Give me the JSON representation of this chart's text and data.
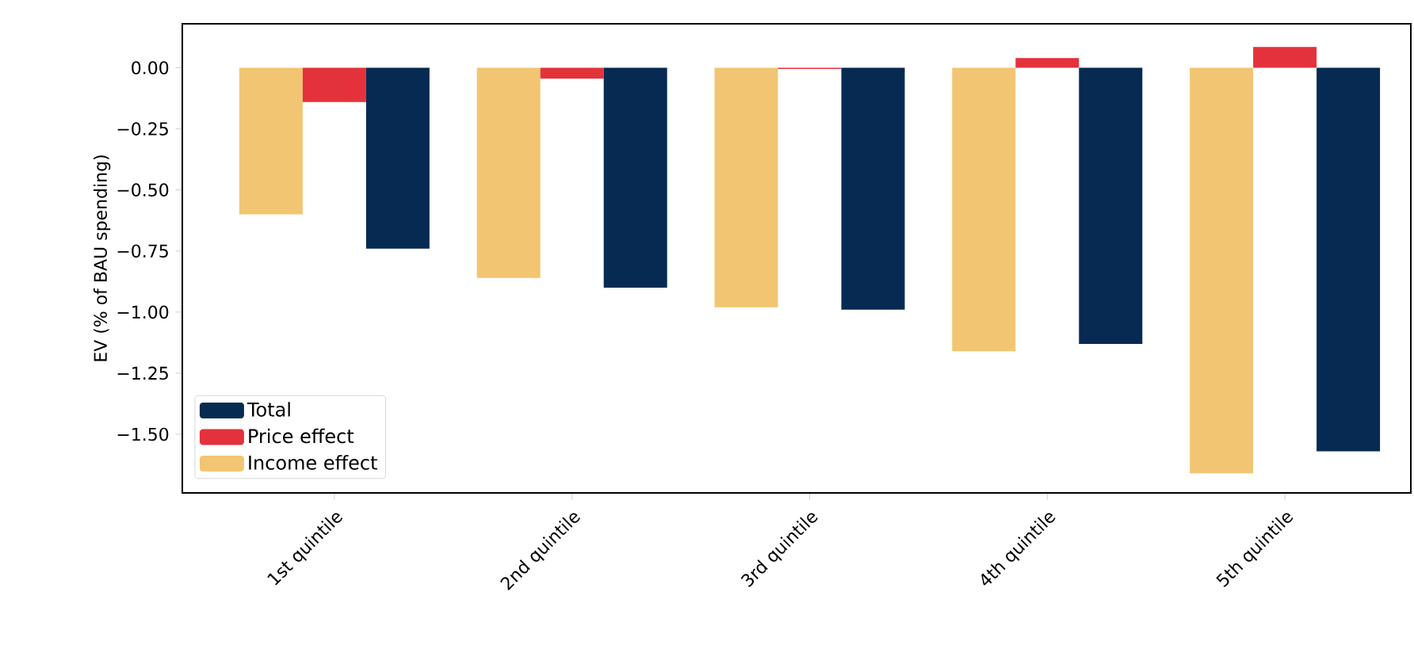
{
  "chart_data": {
    "type": "bar",
    "ylabel": "EV (% of BAU spending)",
    "categories": [
      "1st quintile",
      "2nd quintile",
      "3rd quintile",
      "4th quintile",
      "5th quintile"
    ],
    "series": [
      {
        "name": "Income effect",
        "color": "#f2c572",
        "values": [
          -0.6,
          -0.86,
          -0.98,
          -1.16,
          -1.66
        ]
      },
      {
        "name": "Price effect",
        "color": "#e3323b",
        "values": [
          -0.14,
          -0.045,
          -0.005,
          0.04,
          0.085
        ]
      },
      {
        "name": "Total",
        "color": "#062a52",
        "values": [
          -0.74,
          -0.9,
          -0.99,
          -1.13,
          -1.57
        ]
      }
    ],
    "ylim": [
      -1.74,
      0.18
    ],
    "yticks": [
      {
        "value": 0,
        "label": "0.00"
      },
      {
        "value": -0.25,
        "label": "−0.25"
      },
      {
        "value": -0.5,
        "label": "−0.50"
      },
      {
        "value": -0.75,
        "label": "−0.75"
      },
      {
        "value": -1.0,
        "label": "−1.00"
      },
      {
        "value": -1.25,
        "label": "−1.25"
      },
      {
        "value": -1.5,
        "label": "−1.50"
      }
    ],
    "grid": false,
    "legend": "bottom left"
  }
}
